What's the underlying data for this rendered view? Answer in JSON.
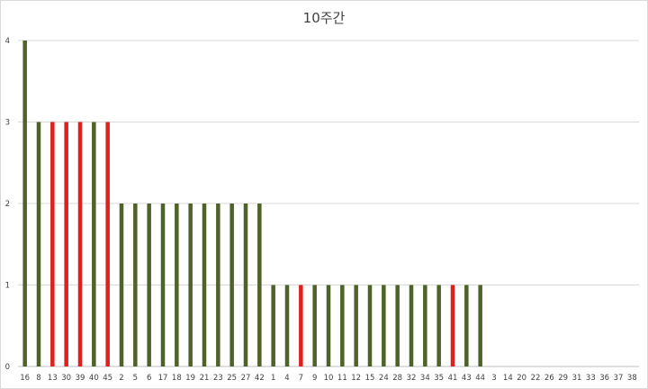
{
  "chart_data": {
    "type": "bar",
    "title": "10주간",
    "xlabel": "",
    "ylabel": "",
    "ylim": [
      0,
      4
    ],
    "yticks": [
      0,
      1,
      2,
      3,
      4
    ],
    "grid": true,
    "legend": "none",
    "colors": {
      "default": "#4f6228",
      "highlight": "#e0201e",
      "grid": "#d9d9d9",
      "axis": "#bfbfbf"
    },
    "categories": [
      "16",
      "8",
      "13",
      "30",
      "39",
      "40",
      "45",
      "2",
      "5",
      "6",
      "17",
      "18",
      "19",
      "21",
      "23",
      "25",
      "27",
      "42",
      "1",
      "4",
      "7",
      "9",
      "10",
      "11",
      "12",
      "15",
      "24",
      "28",
      "32",
      "34",
      "35",
      "41",
      "43",
      "44",
      "3",
      "14",
      "20",
      "22",
      "26",
      "29",
      "31",
      "33",
      "36",
      "37",
      "38"
    ],
    "values": [
      4,
      3,
      3,
      3,
      3,
      3,
      3,
      2,
      2,
      2,
      2,
      2,
      2,
      2,
      2,
      2,
      2,
      2,
      1,
      1,
      1,
      1,
      1,
      1,
      1,
      1,
      1,
      1,
      1,
      1,
      1,
      1,
      1,
      1,
      0,
      0,
      0,
      0,
      0,
      0,
      0,
      0,
      0,
      0,
      0
    ],
    "highlighted": [
      "13",
      "30",
      "39",
      "45",
      "7",
      "41"
    ]
  }
}
